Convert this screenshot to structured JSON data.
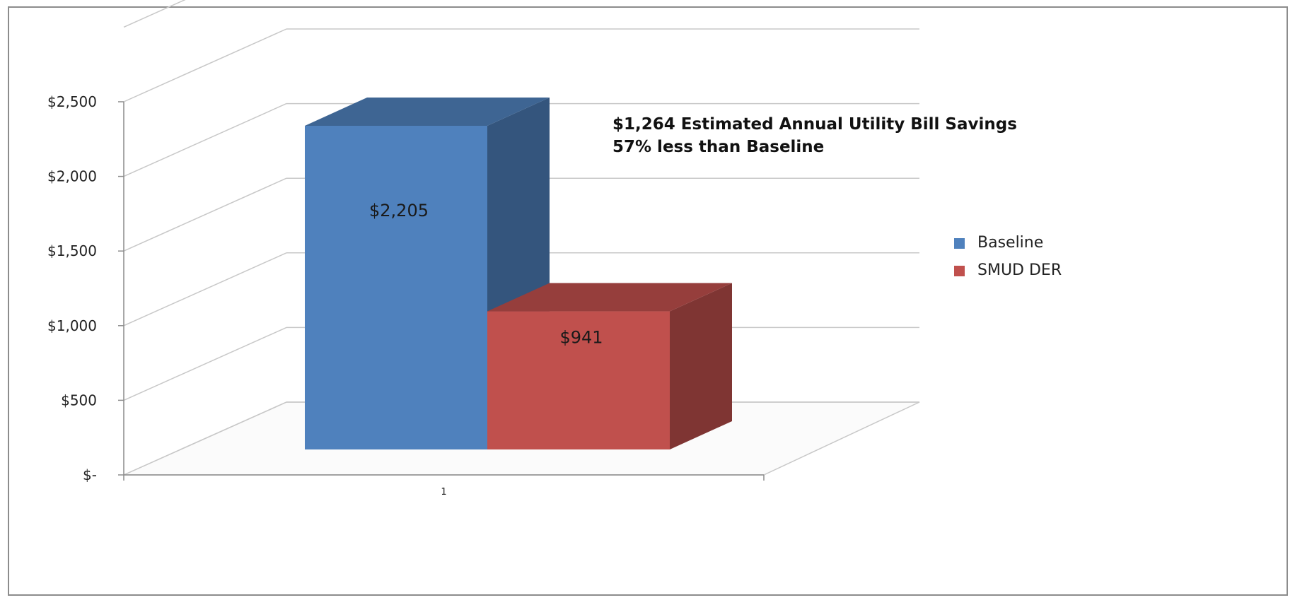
{
  "chart_data": {
    "type": "bar",
    "categories": [
      "1"
    ],
    "series": [
      {
        "name": "Baseline",
        "values": [
          2205
        ],
        "color": "#4F81BD"
      },
      {
        "name": "SMUD DER",
        "values": [
          941
        ],
        "color": "#C0504D"
      }
    ],
    "data_labels": [
      "$2,205",
      "$941"
    ],
    "ylim": [
      0,
      2500
    ],
    "yticks": [
      0,
      500,
      1000,
      1500,
      2000,
      2500
    ],
    "ytick_labels": [
      "$-",
      "$500",
      "$1,000",
      "$1,500",
      "$2,000",
      "$2,500"
    ],
    "title": "",
    "xlabel": "",
    "ylabel": "",
    "annotation": [
      "$1,264 Estimated Annual Utility Bill Savings",
      "57% less than Baseline"
    ],
    "legend_position": "right",
    "grid": true,
    "style": "3d-column"
  }
}
